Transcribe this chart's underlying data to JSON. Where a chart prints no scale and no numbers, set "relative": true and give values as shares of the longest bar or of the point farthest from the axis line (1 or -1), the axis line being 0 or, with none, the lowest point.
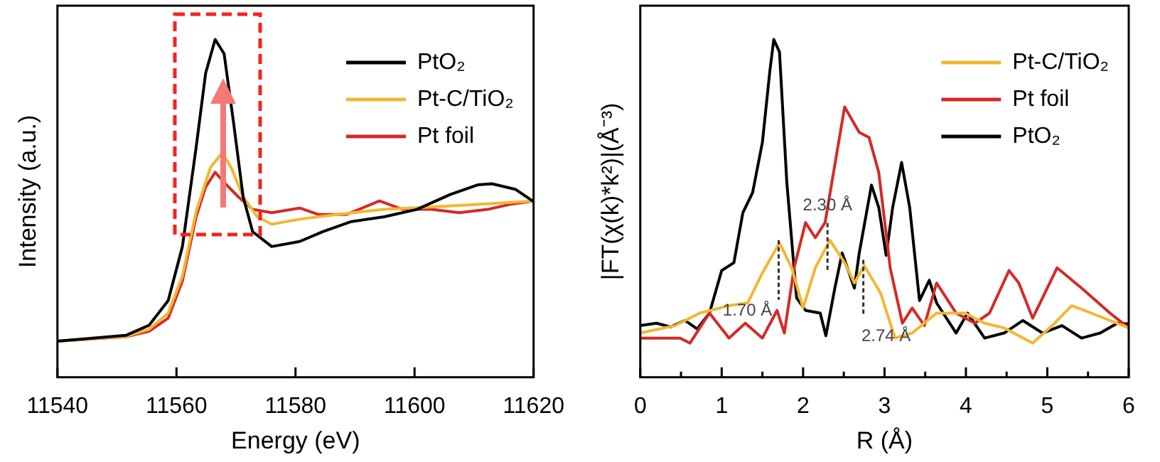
{
  "chart_data": [
    {
      "type": "line",
      "xlabel": "Energy (eV)",
      "ylabel": "Intensity (a.u.)",
      "relative": true,
      "xlim": [
        11540,
        11620
      ],
      "xticks": [
        11540,
        11560,
        11580,
        11600,
        11620
      ],
      "grid": false,
      "legend": "top right",
      "marker": "none",
      "line_style": "solid",
      "series": [
        {
          "name": "PtO₂",
          "color": "#000000",
          "x": [
            11540,
            11551.5,
            11555.4,
            11558.6,
            11561,
            11563.3,
            11564.9,
            11566.5,
            11568,
            11569.6,
            11571.2,
            11572.8,
            11576,
            11580.7,
            11584.6,
            11589.4,
            11594.9,
            11600.4,
            11606,
            11610.7,
            11613,
            11617,
            11620
          ],
          "values": [
            0.107,
            0.124,
            0.154,
            0.227,
            0.387,
            0.68,
            0.9,
            1.0,
            0.958,
            0.753,
            0.534,
            0.431,
            0.387,
            0.402,
            0.431,
            0.461,
            0.475,
            0.497,
            0.541,
            0.57,
            0.573,
            0.556,
            0.52
          ]
        },
        {
          "name": "Pt-C/TiO₂",
          "color": "#f2b731",
          "x": [
            11540,
            11551.5,
            11555.4,
            11558.6,
            11561,
            11563.3,
            11565.7,
            11567.7,
            11569.2,
            11571.2,
            11573.6,
            11576,
            11580.7,
            11587,
            11594.9,
            11602.8,
            11610.7,
            11620
          ],
          "values": [
            0.107,
            0.121,
            0.142,
            0.19,
            0.3,
            0.49,
            0.621,
            0.665,
            0.621,
            0.534,
            0.475,
            0.453,
            0.468,
            0.482,
            0.497,
            0.504,
            0.512,
            0.522
          ]
        },
        {
          "name": "Pt foil",
          "color": "#d42a27",
          "x": [
            11540,
            11551.5,
            11555.4,
            11558.6,
            11561,
            11563.3,
            11564.9,
            11566.5,
            11568,
            11570.4,
            11572.8,
            11576,
            11580.7,
            11583.8,
            11588.6,
            11594.1,
            11598,
            11602.8,
            11607.5,
            11612.3,
            11616,
            11620
          ],
          "values": [
            0.107,
            0.12,
            0.136,
            0.175,
            0.285,
            0.475,
            0.563,
            0.607,
            0.577,
            0.534,
            0.497,
            0.487,
            0.501,
            0.482,
            0.482,
            0.522,
            0.497,
            0.497,
            0.487,
            0.497,
            0.512,
            0.522
          ]
        }
      ]
    },
    {
      "type": "line",
      "xlabel": "R (Å)",
      "ylabel": "|FT(χ(k)*k²)|(Å⁻³)",
      "relative": true,
      "xlim": [
        0,
        6
      ],
      "xticks": [
        0,
        {
          "value": 0.5,
          "label": null
        },
        1,
        {
          "value": 1.5,
          "label": null
        },
        2,
        {
          "value": 2.5,
          "label": null
        },
        3,
        {
          "value": 3.5,
          "label": null
        },
        4,
        {
          "value": 4.5,
          "label": null
        },
        5,
        {
          "value": 5.5,
          "label": null
        },
        6
      ],
      "grid": false,
      "legend": "top right",
      "marker": "none",
      "line_style": "solid",
      "annotations": [
        {
          "text": "1.70 Å",
          "x": 1.7,
          "y": 0.398
        },
        {
          "text": "2.30 Å",
          "x": 2.3,
          "y": 0.406
        },
        {
          "text": "2.74 Å",
          "x": 2.74,
          "y": 0.331
        }
      ],
      "series": [
        {
          "name": "Pt-C/TiO₂",
          "color": "#f2b731",
          "x": [
            0,
            0.43,
            0.73,
            1.09,
            1.32,
            1.5,
            1.71,
            1.86,
            2.0,
            2.15,
            2.33,
            2.51,
            2.63,
            2.75,
            2.95,
            3.13,
            3.34,
            3.64,
            3.99,
            4.23,
            4.47,
            4.82,
            5.06,
            5.3,
            5.54,
            6.0
          ],
          "values": [
            0.131,
            0.153,
            0.19,
            0.212,
            0.22,
            0.309,
            0.398,
            0.324,
            0.205,
            0.324,
            0.406,
            0.339,
            0.279,
            0.331,
            0.25,
            0.116,
            0.131,
            0.19,
            0.19,
            0.16,
            0.146,
            0.101,
            0.153,
            0.212,
            0.19,
            0.146
          ]
        },
        {
          "name": "Pt foil",
          "color": "#d42a27",
          "x": [
            0,
            0.49,
            0.61,
            0.85,
            1.09,
            1.29,
            1.5,
            1.68,
            1.77,
            1.89,
            2.03,
            2.15,
            2.27,
            2.51,
            2.69,
            2.81,
            2.93,
            3.07,
            3.22,
            3.34,
            3.49,
            3.64,
            3.88,
            4.11,
            4.29,
            4.53,
            4.65,
            4.82,
            5.12,
            5.42,
            5.77,
            6.0
          ],
          "values": [
            0.116,
            0.116,
            0.101,
            0.19,
            0.116,
            0.16,
            0.116,
            0.198,
            0.131,
            0.324,
            0.458,
            0.413,
            0.458,
            0.8,
            0.725,
            0.71,
            0.606,
            0.324,
            0.16,
            0.205,
            0.153,
            0.279,
            0.19,
            0.16,
            0.19,
            0.316,
            0.279,
            0.175,
            0.324,
            0.264,
            0.19,
            0.146
          ]
        },
        {
          "name": "PtO₂",
          "color": "#000000",
          "x": [
            0,
            0.2,
            0.37,
            0.55,
            0.7,
            0.85,
            1.0,
            1.15,
            1.26,
            1.38,
            1.5,
            1.59,
            1.64,
            1.71,
            1.8,
            1.92,
            2.03,
            2.21,
            2.28,
            2.39,
            2.48,
            2.63,
            2.69,
            2.84,
            2.93,
            3.02,
            3.1,
            3.21,
            3.31,
            3.43,
            3.55,
            3.64,
            3.88,
            4.02,
            4.23,
            4.47,
            4.7,
            4.94,
            5.18,
            5.42,
            5.65,
            5.86,
            6.0
          ],
          "values": [
            0.153,
            0.16,
            0.149,
            0.168,
            0.143,
            0.19,
            0.316,
            0.339,
            0.487,
            0.547,
            0.695,
            0.903,
            1.0,
            0.963,
            0.577,
            0.235,
            0.198,
            0.19,
            0.123,
            0.264,
            0.368,
            0.264,
            0.368,
            0.569,
            0.502,
            0.361,
            0.502,
            0.636,
            0.502,
            0.227,
            0.287,
            0.22,
            0.131,
            0.19,
            0.116,
            0.131,
            0.168,
            0.131,
            0.153,
            0.116,
            0.131,
            0.16,
            0.158
          ]
        }
      ]
    }
  ]
}
